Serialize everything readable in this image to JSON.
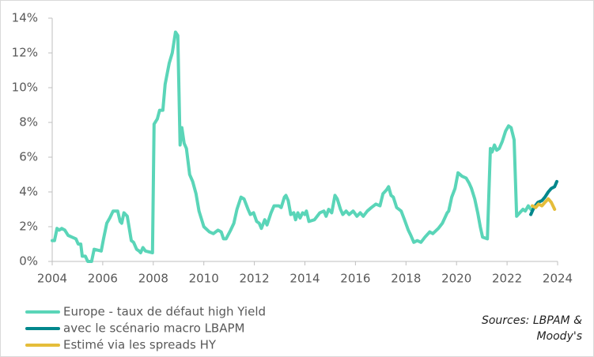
{
  "chart_data": {
    "type": "line",
    "xlim": [
      2004,
      2024
    ],
    "xticks": [
      2004,
      2006,
      2008,
      2010,
      2012,
      2014,
      2016,
      2018,
      2020,
      2022,
      2024
    ],
    "ylim": [
      0,
      14
    ],
    "yticks": [
      {
        "value": 0,
        "label": "0%"
      },
      {
        "value": 2,
        "label": "2%"
      },
      {
        "value": 4,
        "label": "4%"
      },
      {
        "value": 6,
        "label": "6%"
      },
      {
        "value": 8,
        "label": "8%"
      },
      {
        "value": 10,
        "label": "10%"
      },
      {
        "value": 12,
        "label": "12%"
      },
      {
        "value": 14,
        "label": "14%"
      }
    ],
    "grid": false,
    "legend": "bottom-left",
    "source": [
      "Sources: LBPAM &",
      "Moody's"
    ],
    "series": [
      {
        "name": "Europe - taux de défaut high Yield",
        "color": "#5ad5b8",
        "x": [
          2004.0,
          2004.09,
          2004.19,
          2004.28,
          2004.38,
          2004.5,
          2004.63,
          2004.78,
          2004.94,
          2005.03,
          2005.13,
          2005.19,
          2005.31,
          2005.41,
          2005.56,
          2005.66,
          2005.94,
          2006.03,
          2006.16,
          2006.28,
          2006.41,
          2006.59,
          2006.69,
          2006.75,
          2006.84,
          2006.97,
          2007.13,
          2007.22,
          2007.34,
          2007.44,
          2007.5,
          2007.59,
          2007.69,
          2007.97,
          2008.03,
          2008.16,
          2008.25,
          2008.38,
          2008.47,
          2008.63,
          2008.75,
          2008.88,
          2008.97,
          2009.06,
          2009.13,
          2009.22,
          2009.31,
          2009.44,
          2009.56,
          2009.69,
          2009.81,
          2010.0,
          2010.22,
          2010.38,
          2010.56,
          2010.69,
          2010.78,
          2010.88,
          2011.06,
          2011.19,
          2011.31,
          2011.47,
          2011.59,
          2011.75,
          2011.84,
          2011.97,
          2012.09,
          2012.19,
          2012.28,
          2012.41,
          2012.5,
          2012.66,
          2012.78,
          2012.97,
          2013.06,
          2013.19,
          2013.25,
          2013.34,
          2013.44,
          2013.56,
          2013.63,
          2013.72,
          2013.81,
          2013.91,
          2014.0,
          2014.06,
          2014.16,
          2014.38,
          2014.59,
          2014.75,
          2014.84,
          2014.94,
          2015.06,
          2015.19,
          2015.28,
          2015.41,
          2015.5,
          2015.63,
          2015.75,
          2015.91,
          2016.06,
          2016.19,
          2016.31,
          2016.47,
          2016.63,
          2016.81,
          2016.97,
          2017.09,
          2017.22,
          2017.31,
          2017.41,
          2017.5,
          2017.63,
          2017.81,
          2017.94,
          2018.09,
          2018.19,
          2018.31,
          2018.44,
          2018.59,
          2018.75,
          2018.94,
          2019.06,
          2019.28,
          2019.44,
          2019.63,
          2019.69,
          2019.81,
          2019.94,
          2020.06,
          2020.22,
          2020.38,
          2020.5,
          2020.59,
          2020.72,
          2020.84,
          2020.94,
          2021.03,
          2021.22,
          2021.34,
          2021.41,
          2021.5,
          2021.59,
          2021.69,
          2021.81,
          2021.94,
          2022.06,
          2022.16,
          2022.28,
          2022.38,
          2022.5,
          2022.63,
          2022.72,
          2022.84,
          2022.94
        ],
        "values": [
          1.2,
          1.2,
          1.9,
          1.8,
          1.9,
          1.8,
          1.5,
          1.4,
          1.3,
          1.0,
          1.0,
          0.3,
          0.3,
          0.0,
          0.0,
          0.7,
          0.6,
          1.3,
          2.2,
          2.5,
          2.9,
          2.9,
          2.3,
          2.2,
          2.8,
          2.6,
          1.2,
          1.1,
          0.7,
          0.6,
          0.5,
          0.8,
          0.6,
          0.5,
          7.9,
          8.2,
          8.7,
          8.7,
          10.2,
          11.4,
          12.0,
          13.2,
          13.0,
          6.7,
          7.7,
          6.8,
          6.5,
          5.0,
          4.6,
          3.9,
          2.9,
          2.0,
          1.7,
          1.6,
          1.8,
          1.7,
          1.3,
          1.3,
          1.8,
          2.2,
          3.0,
          3.7,
          3.6,
          3.0,
          2.7,
          2.8,
          2.3,
          2.2,
          1.9,
          2.4,
          2.1,
          2.8,
          3.2,
          3.2,
          3.1,
          3.7,
          3.8,
          3.5,
          2.7,
          2.8,
          2.4,
          2.8,
          2.5,
          2.8,
          2.7,
          2.9,
          2.3,
          2.4,
          2.8,
          2.9,
          2.6,
          3.0,
          2.8,
          3.8,
          3.6,
          3.0,
          2.7,
          2.9,
          2.7,
          2.9,
          2.6,
          2.8,
          2.6,
          2.9,
          3.1,
          3.3,
          3.2,
          3.9,
          4.1,
          4.3,
          3.8,
          3.7,
          3.1,
          2.9,
          2.4,
          1.8,
          1.5,
          1.1,
          1.2,
          1.1,
          1.4,
          1.7,
          1.6,
          1.9,
          2.2,
          2.8,
          2.9,
          3.7,
          4.2,
          5.1,
          4.9,
          4.8,
          4.5,
          4.2,
          3.6,
          2.8,
          2.0,
          1.4,
          1.3,
          6.5,
          6.3,
          6.7,
          6.4,
          6.5,
          6.9,
          7.5,
          7.8,
          7.7,
          7.0,
          2.6,
          2.8,
          3.0,
          2.9,
          3.2,
          3.0
        ]
      },
      {
        "name": "avec le scénario macro LBAPM",
        "color": "#00878c",
        "x": [
          2022.94,
          2023.06,
          2023.22,
          2023.38,
          2023.5,
          2023.63,
          2023.75,
          2023.88,
          2023.97
        ],
        "values": [
          2.7,
          3.1,
          3.4,
          3.5,
          3.7,
          4.0,
          4.2,
          4.3,
          4.6
        ]
      },
      {
        "name": "Estimé via les spreads HY",
        "color": "#e5bd3a",
        "x": [
          2023.0,
          2023.13,
          2023.25,
          2023.38,
          2023.5,
          2023.63,
          2023.75,
          2023.88
        ],
        "values": [
          3.2,
          3.1,
          3.3,
          3.2,
          3.4,
          3.6,
          3.4,
          3.0
        ]
      }
    ]
  }
}
